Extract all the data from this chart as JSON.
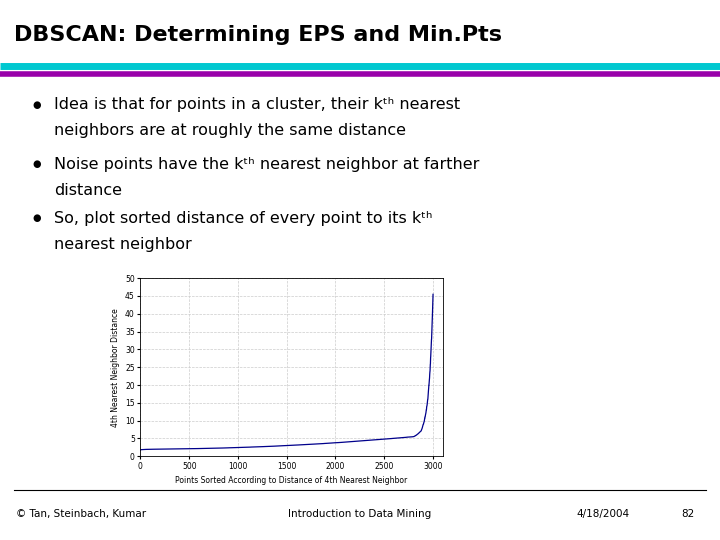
{
  "title": "DBSCAN: Determining EPS and Min.Pts",
  "title_fontsize": 16,
  "title_fontweight": "bold",
  "title_color": "#000000",
  "separator_color_top": "#00c8d0",
  "separator_color_bottom": "#9900aa",
  "bullet_items": [
    {
      "line1_pre": "Idea is that for points in a cluster, their k",
      "line1_post": " nearest",
      "line2": "neighbors are at roughly the same distance"
    },
    {
      "line1_pre": "Noise points have the k",
      "line1_post": " nearest neighbor at farther",
      "line2": "distance"
    },
    {
      "line1_pre": "So, plot sorted distance of every point to its k",
      "line1_post": "",
      "line2": "nearest neighbor"
    }
  ],
  "footer_left": "© Tan, Steinbach, Kumar",
  "footer_center": "Introduction to Data Mining",
  "footer_right": "4/18/2004",
  "footer_page": "82",
  "plot_xlabel": "Points Sorted According to Distance of 4th Nearest Neighbor",
  "plot_ylabel": "4th Nearest Neighbor Distance",
  "plot_xlim": [
    0,
    3100
  ],
  "plot_ylim": [
    0,
    50
  ],
  "plot_xticks": [
    0,
    500,
    1000,
    1500,
    2000,
    2500,
    3000
  ],
  "plot_yticks": [
    0,
    5,
    10,
    15,
    20,
    25,
    30,
    35,
    40,
    45,
    50
  ],
  "plot_line_color": "#00008B",
  "background_color": "#ffffff",
  "num_points": 3000
}
